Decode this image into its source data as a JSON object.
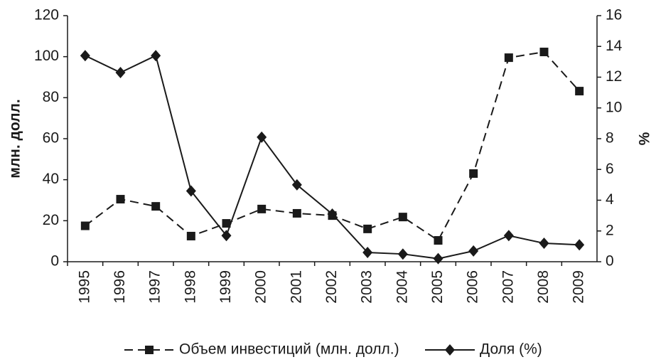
{
  "chart_data": {
    "type": "line",
    "categories": [
      "1995",
      "1996",
      "1997",
      "1998",
      "1999",
      "2000",
      "2001",
      "2002",
      "2003",
      "2004",
      "2005",
      "2006",
      "2007",
      "2008",
      "2009"
    ],
    "series": [
      {
        "name": "Объем инвестиций (млн. долл.)",
        "color": "#1a1a1a",
        "dash": true,
        "marker": "square",
        "values": [
          17.5,
          30.5,
          27,
          12.5,
          18.7,
          25.7,
          23.6,
          22.5,
          16,
          21.8,
          10.4,
          43,
          99.5,
          102.3,
          83.2
        ]
      },
      {
        "name": "Доля (%)",
        "color": "#1a1a1a",
        "dash": false,
        "marker": "diamond",
        "axis": "y2",
        "values": [
          13.4,
          12.3,
          13.4,
          4.6,
          1.7,
          8.1,
          5.0,
          3.1,
          0.6,
          0.5,
          0.2,
          0.7,
          1.7,
          1.2,
          1.1
        ]
      }
    ],
    "ylabel": "млн. долл.",
    "y2label": "%",
    "ylim": [
      0,
      120
    ],
    "yticks": [
      0,
      20,
      40,
      60,
      80,
      100,
      120
    ],
    "y2lim": [
      0,
      16
    ],
    "y2ticks": [
      0,
      2,
      4,
      6,
      8,
      10,
      12,
      14,
      16
    ],
    "legend": "bottom",
    "grid": false
  }
}
